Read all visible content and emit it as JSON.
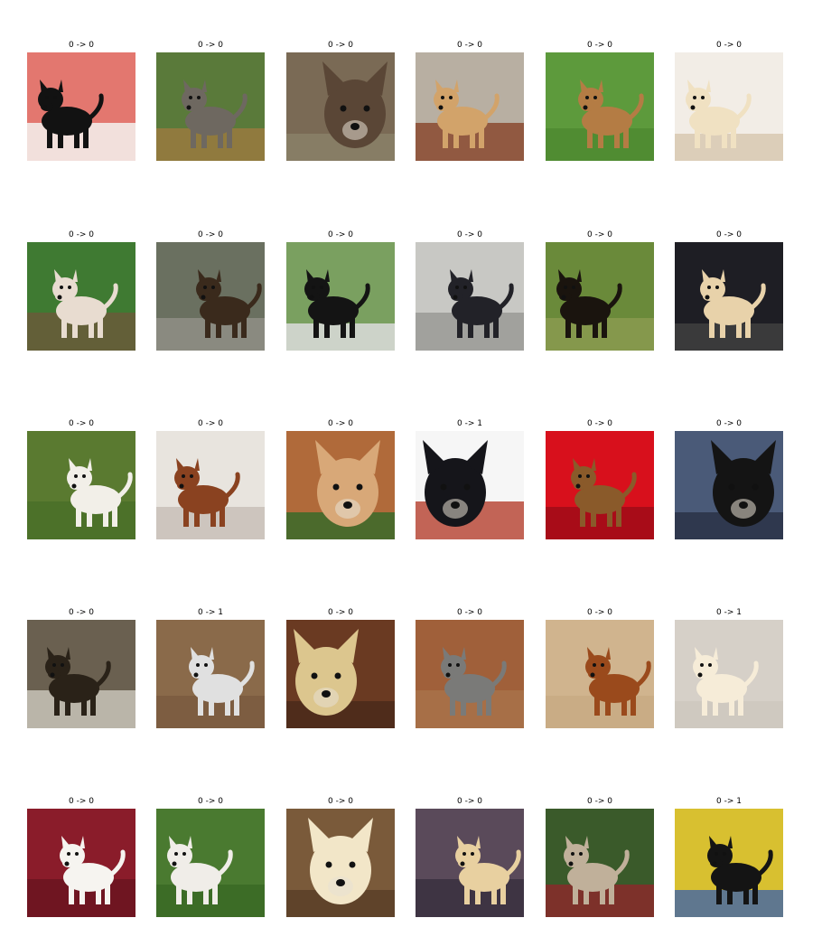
{
  "figure": {
    "images": [
      {
        "label": "0 -> 0",
        "bg": "#e3776f",
        "fg": "#121212",
        "floor": "#f4f2f0"
      },
      {
        "label": "0 -> 0",
        "bg": "#5a7a3a",
        "fg": "#6e6860",
        "floor": "#9a7a40"
      },
      {
        "label": "0 -> 0",
        "bg": "#7a6a55",
        "fg": "#5a4636",
        "floor": "#8a8068"
      },
      {
        "label": "0 -> 0",
        "bg": "#b8afa2",
        "fg": "#d2a36a",
        "floor": "#8a4a30"
      },
      {
        "label": "0 -> 0",
        "bg": "#5d9a3c",
        "fg": "#b47c44",
        "floor": "#4d8a30"
      },
      {
        "label": "0 -> 0",
        "bg": "#f2ede6",
        "fg": "#f0e1c2",
        "floor": "#d8c8b0"
      },
      {
        "label": "0 -> 0",
        "bg": "#3f7a32",
        "fg": "#e8dcd0",
        "floor": "#6a5a3a"
      },
      {
        "label": "0 -> 0",
        "bg": "#6a7060",
        "fg": "#3a2a1c",
        "floor": "#8f8e86"
      },
      {
        "label": "0 -> 0",
        "bg": "#7aa060",
        "fg": "#141414",
        "floor": "#dcdcdc"
      },
      {
        "label": "0 -> 0",
        "bg": "#c8c8c4",
        "fg": "#222228",
        "floor": "#9a9a96"
      },
      {
        "label": "0 -> 0",
        "bg": "#6a8a3a",
        "fg": "#1a140e",
        "floor": "#8a9a50"
      },
      {
        "label": "0 -> 0",
        "bg": "#1e1e24",
        "fg": "#e8d2aa",
        "floor": "#404040"
      },
      {
        "label": "0 -> 0",
        "bg": "#5a7a30",
        "fg": "#f2efe8",
        "floor": "#4a7028"
      },
      {
        "label": "0 -> 0",
        "bg": "#e8e4de",
        "fg": "#8a4220",
        "floor": "#c8c0b8"
      },
      {
        "label": "0 -> 0",
        "bg": "#b06a3a",
        "fg": "#d8a878",
        "floor": "#3a6a2a"
      },
      {
        "label": "0 -> 1",
        "bg": "#f6f6f6",
        "fg": "#15151a",
        "floor": "#b84a3a"
      },
      {
        "label": "0 -> 0",
        "bg": "#d8101c",
        "fg": "#8a5a2a",
        "floor": "#a00c18"
      },
      {
        "label": "0 -> 0",
        "bg": "#4a5a78",
        "fg": "#141414",
        "floor": "#2a3246"
      },
      {
        "label": "0 -> 0",
        "bg": "#6a6050",
        "fg": "#2a2218",
        "floor": "#c8c4b8"
      },
      {
        "label": "0 -> 1",
        "bg": "#8a6a4a",
        "fg": "#e0e0e0",
        "floor": "#7a5a40"
      },
      {
        "label": "0 -> 0",
        "bg": "#6a3a22",
        "fg": "#dcc68e",
        "floor": "#4a2a1a"
      },
      {
        "label": "0 -> 0",
        "bg": "#a0603a",
        "fg": "#7a7a78",
        "floor": "#a8724a"
      },
      {
        "label": "0 -> 0",
        "bg": "#d0b48e",
        "fg": "#9a4a1c",
        "floor": "#c8aa84"
      },
      {
        "label": "0 -> 1",
        "bg": "#d6d0c8",
        "fg": "#f6ecd8",
        "floor": "#cec8be"
      },
      {
        "label": "0 -> 0",
        "bg": "#8a1c2a",
        "fg": "#f6f4f0",
        "floor": "#6a1420"
      },
      {
        "label": "0 -> 0",
        "bg": "#4a7a30",
        "fg": "#f0ede8",
        "floor": "#3a6a24"
      },
      {
        "label": "0 -> 0",
        "bg": "#7a5a3a",
        "fg": "#f2e6c8",
        "floor": "#5a4028"
      },
      {
        "label": "0 -> 0",
        "bg": "#5a4a5a",
        "fg": "#e8d0a0",
        "floor": "#3a3040"
      },
      {
        "label": "0 -> 0",
        "bg": "#3a5a2a",
        "fg": "#c0b09a",
        "floor": "#8a2a2a"
      },
      {
        "label": "0 -> 1",
        "bg": "#d8c030",
        "fg": "#141414",
        "floor": "#4a6aa0"
      }
    ]
  }
}
